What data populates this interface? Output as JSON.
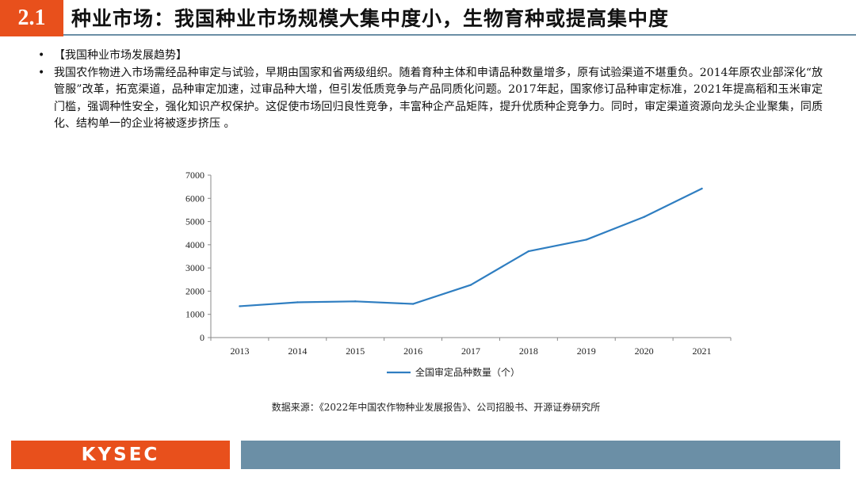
{
  "header": {
    "section": "2.1",
    "title": "种业市场：我国种业市场规模大集中度小，生物育种或提高集中度"
  },
  "bullets": [
    "【我国种业市场发展趋势】",
    "我国农作物进入市场需经品种审定与试验，早期由国家和省两级组织。随着育种主体和申请品种数量增多，原有试验渠道不堪重负。2014年原农业部深化“放管服”改革，拓宽渠道，品种审定加速，过审品种大增，但引发低质竞争与产品同质化问题。2017年起，国家修订品种审定标准，2021年提高稻和玉米审定门槛，强调种性安全，强化知识产权保护。这促使市场回归良性竞争，丰富种企产品矩阵，提升优质种企竞争力。同时，审定渠道资源向龙头企业聚集，同质化、结构单一的企业将被逐步挤压 。"
  ],
  "chart_data": {
    "type": "line",
    "categories": [
      "2013",
      "2014",
      "2015",
      "2016",
      "2017",
      "2018",
      "2019",
      "2020",
      "2021"
    ],
    "series": [
      {
        "name": "全国审定品种数量（个）",
        "values": [
          1350,
          1520,
          1560,
          1450,
          2270,
          3720,
          4220,
          5200,
          6420
        ],
        "color": "#2f7ec1"
      }
    ],
    "ylim": [
      0,
      7000
    ],
    "yticks": [
      "0",
      "1000",
      "2000",
      "3000",
      "4000",
      "5000",
      "6000",
      "7000"
    ],
    "grid": false,
    "legend": "bottom"
  },
  "source": "数据来源：《2022年中国农作物种业发展报告》、公司招股书、开源证券研究所",
  "footer": {
    "logo": "KYSEC"
  },
  "colors": {
    "accent": "#e8501c",
    "bar": "#6b8fa6",
    "line": "#2f7ec1"
  }
}
